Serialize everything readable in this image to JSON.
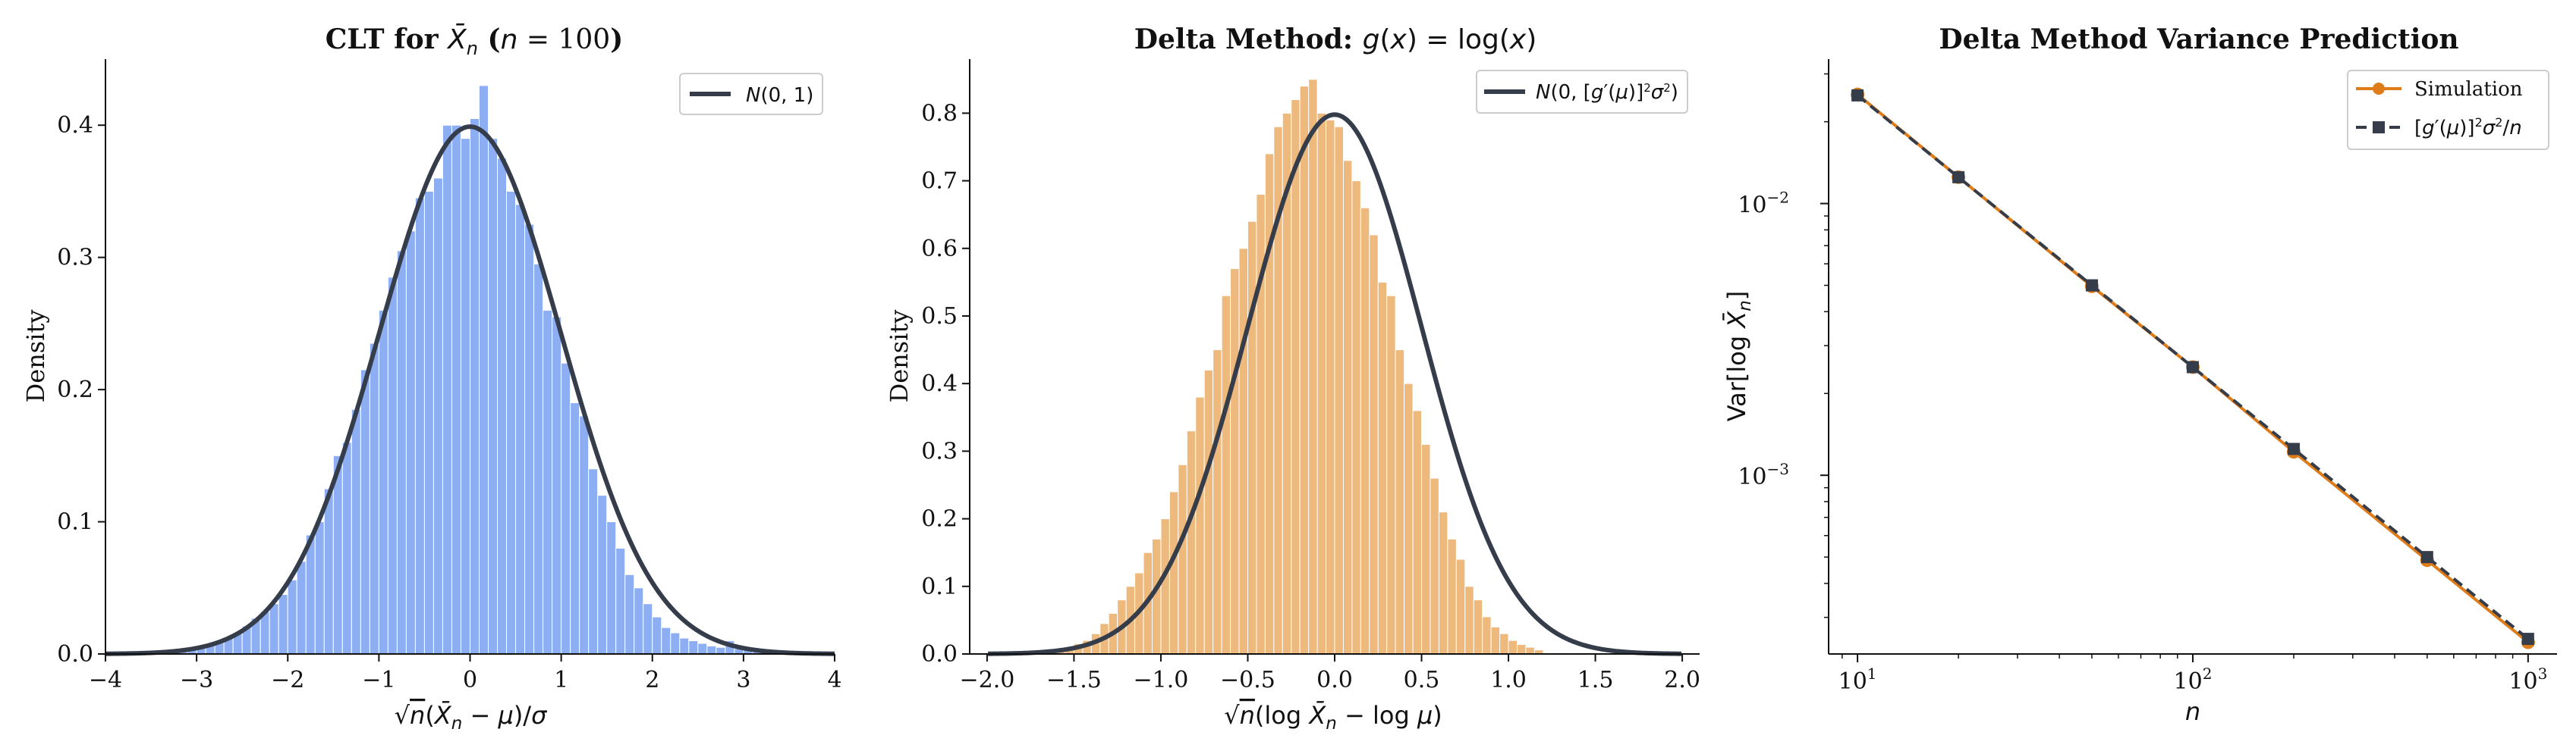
{
  "chart_data": [
    {
      "type": "bar",
      "title": "CLT for X̄ₙ (n = 100)",
      "xlabel": "√n(X̄ₙ − μ)/σ",
      "ylabel": "Density",
      "xlim": [
        -4,
        4
      ],
      "ylim": [
        0,
        0.45
      ],
      "xticks": [
        "−4",
        "−3",
        "−2",
        "−1",
        "0",
        "1",
        "2",
        "3",
        "4"
      ],
      "yticks": [
        "0.0",
        "0.1",
        "0.2",
        "0.3",
        "0.4"
      ],
      "bar_color": "#8DAEF2",
      "curve_color": "#353C4A",
      "bin_width": 0.1,
      "bin_start": -3.3,
      "values": [
        0.001,
        0.002,
        0.003,
        0.005,
        0.007,
        0.009,
        0.012,
        0.016,
        0.021,
        0.027,
        0.032,
        0.038,
        0.045,
        0.056,
        0.07,
        0.09,
        0.1,
        0.125,
        0.15,
        0.16,
        0.185,
        0.215,
        0.235,
        0.26,
        0.285,
        0.305,
        0.32,
        0.345,
        0.35,
        0.36,
        0.4,
        0.4,
        0.39,
        0.405,
        0.43,
        0.39,
        0.375,
        0.35,
        0.34,
        0.325,
        0.295,
        0.26,
        0.255,
        0.22,
        0.19,
        0.18,
        0.14,
        0.12,
        0.1,
        0.08,
        0.06,
        0.05,
        0.038,
        0.028,
        0.02,
        0.016,
        0.012,
        0.01,
        0.008,
        0.006,
        0.005,
        0.01,
        0.004,
        0.003,
        0.002,
        0.001,
        0.001
      ],
      "curve": {
        "type": "normal",
        "mean": 0,
        "sd": 1,
        "label": "N(0, 1)"
      },
      "legend": "top-right",
      "grid": false
    },
    {
      "type": "bar",
      "title": "Delta Method: g(x) = log(x)",
      "xlabel": "√n(log X̄ₙ − log μ)",
      "ylabel": "Density",
      "xlim": [
        -2.1,
        2.1
      ],
      "ylim": [
        0,
        0.88
      ],
      "xticks": [
        "−2.0",
        "−1.5",
        "−1.0",
        "−0.5",
        "0.0",
        "0.5",
        "1.0",
        "1.5",
        "2.0"
      ],
      "yticks": [
        "0.0",
        "0.1",
        "0.2",
        "0.3",
        "0.4",
        "0.5",
        "0.6",
        "0.7",
        "0.8"
      ],
      "bar_color": "#EEB97D",
      "curve_color": "#353C4A",
      "bin_width": 0.05,
      "bin_start": -1.6,
      "values": [
        0.006,
        0.01,
        0.015,
        0.02,
        0.03,
        0.045,
        0.06,
        0.08,
        0.1,
        0.12,
        0.15,
        0.17,
        0.2,
        0.24,
        0.28,
        0.33,
        0.38,
        0.42,
        0.45,
        0.53,
        0.57,
        0.6,
        0.64,
        0.68,
        0.74,
        0.78,
        0.8,
        0.82,
        0.84,
        0.85,
        0.8,
        0.79,
        0.78,
        0.73,
        0.7,
        0.66,
        0.62,
        0.55,
        0.53,
        0.45,
        0.4,
        0.36,
        0.31,
        0.26,
        0.21,
        0.17,
        0.14,
        0.1,
        0.08,
        0.055,
        0.04,
        0.03,
        0.02,
        0.014,
        0.01,
        0.006
      ],
      "curve": {
        "type": "normal",
        "mean": 0,
        "sd": 0.5,
        "label": "N(0, [g′(μ)]²σ²)"
      },
      "legend": "top-right",
      "grid": false
    },
    {
      "type": "line",
      "title": "Delta Method Variance Prediction",
      "xlabel": "n",
      "ylabel": "Var[log X̄ₙ]",
      "xscale": "log",
      "yscale": "log",
      "xlim": [
        8.2,
        1220
      ],
      "ylim": [
        0.00022,
        0.034
      ],
      "xtick_values": [
        10,
        100,
        1000
      ],
      "xtick_bases": [
        "10",
        "10",
        "10"
      ],
      "xtick_exps": [
        "1",
        "2",
        "3"
      ],
      "ytick_values": [
        0.01,
        0.001
      ],
      "ytick_bases": [
        "10",
        "10"
      ],
      "ytick_exps": [
        "−2",
        "−3"
      ],
      "x": [
        10,
        20,
        50,
        100,
        200,
        500,
        1000
      ],
      "series": [
        {
          "name": "Simulation",
          "color": "#DE7C1A",
          "marker": "circle",
          "linestyle": "solid",
          "values": [
            0.0252,
            0.0125,
            0.00496,
            0.0025,
            0.00122,
            0.000487,
            0.000243
          ]
        },
        {
          "name": "[g′(μ)]²σ²/n",
          "color": "#353C4A",
          "marker": "square",
          "linestyle": "dashed",
          "values": [
            0.025,
            0.0125,
            0.005,
            0.0025,
            0.00125,
            0.0005,
            0.00025
          ]
        }
      ],
      "legend": "top-right",
      "grid": false
    }
  ]
}
